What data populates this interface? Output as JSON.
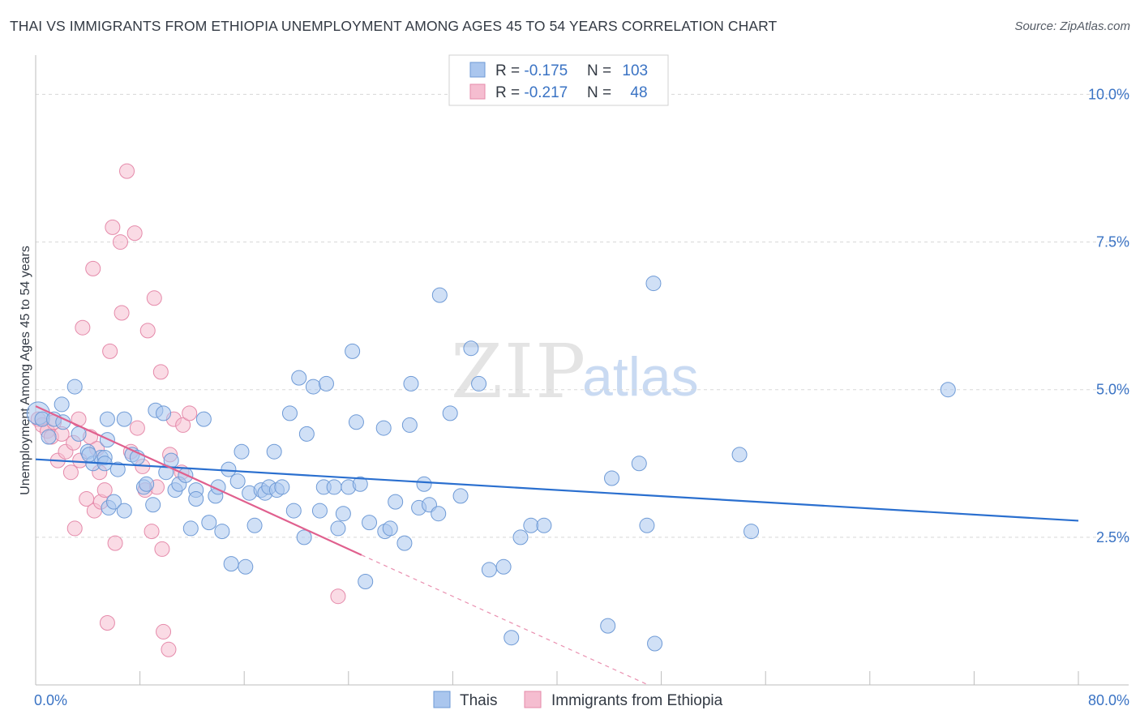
{
  "header": {
    "title": "THAI VS IMMIGRANTS FROM ETHIOPIA UNEMPLOYMENT AMONG AGES 45 TO 54 YEARS CORRELATION CHART",
    "source": "Source: ZipAtlas.com"
  },
  "watermark": {
    "zip": "ZIP",
    "atlas": "atlas"
  },
  "colors": {
    "blue_fill": "#aac6ee",
    "blue_stroke": "#6e9ad6",
    "blue_line": "#2a6fcf",
    "pink_fill": "#f5bdd0",
    "pink_stroke": "#e58aaa",
    "pink_line": "#e0608e",
    "axis_label": "#3a73c4",
    "grid": "#d8d8d8"
  },
  "chart_data": {
    "type": "scatter",
    "title": "THAI VS IMMIGRANTS FROM ETHIOPIA UNEMPLOYMENT AMONG AGES 45 TO 54 YEARS CORRELATION CHART",
    "xlabel": "",
    "ylabel": "Unemployment Among Ages 45 to 54 years",
    "xlim": [
      0,
      80
    ],
    "ylim": [
      0,
      10.5
    ],
    "x_tick_labels": [
      {
        "value": 0,
        "label": "0.0%"
      },
      {
        "value": 80,
        "label": "80.0%"
      }
    ],
    "y_tick_labels": [
      {
        "value": 2.5,
        "label": "2.5%"
      },
      {
        "value": 5.0,
        "label": "5.0%"
      },
      {
        "value": 7.5,
        "label": "7.5%"
      },
      {
        "value": 10.0,
        "label": "10.0%"
      }
    ],
    "grid": true,
    "legend_top": [
      {
        "r_label": "R = ",
        "r_value": "-0.175",
        "n_label": "N = ",
        "n_value": "103"
      },
      {
        "r_label": "R = ",
        "r_value": "-0.217",
        "n_label": "N = ",
        "n_value": "48"
      }
    ],
    "legend_bottom": [
      "Thais",
      "Immigrants from Ethiopia"
    ],
    "series": [
      {
        "name": "Thais",
        "color": "blue",
        "trend": {
          "x0": 0,
          "y0": 3.82,
          "x1": 80,
          "y1": 2.78
        },
        "points": [
          [
            0.2,
            4.6
          ],
          [
            0.5,
            4.5
          ],
          [
            1.0,
            4.2
          ],
          [
            1.4,
            4.5
          ],
          [
            2.0,
            4.75
          ],
          [
            3.0,
            5.05
          ],
          [
            3.3,
            4.25
          ],
          [
            4.0,
            3.95
          ],
          [
            4.4,
            3.75
          ],
          [
            5.0,
            3.85
          ],
          [
            5.3,
            3.85
          ],
          [
            5.5,
            4.15
          ],
          [
            5.3,
            3.75
          ],
          [
            5.6,
            3.0
          ],
          [
            5.5,
            4.5
          ],
          [
            6.0,
            3.1
          ],
          [
            6.3,
            3.65
          ],
          [
            6.8,
            2.95
          ],
          [
            6.8,
            4.5
          ],
          [
            7.4,
            3.9
          ],
          [
            7.8,
            3.85
          ],
          [
            8.3,
            3.35
          ],
          [
            8.5,
            3.4
          ],
          [
            9.0,
            3.05
          ],
          [
            9.2,
            4.65
          ],
          [
            9.8,
            4.6
          ],
          [
            10.0,
            3.6
          ],
          [
            10.4,
            3.8
          ],
          [
            10.7,
            3.3
          ],
          [
            11.0,
            3.4
          ],
          [
            11.5,
            3.55
          ],
          [
            11.9,
            2.65
          ],
          [
            12.3,
            3.3
          ],
          [
            12.3,
            3.15
          ],
          [
            12.9,
            4.5
          ],
          [
            13.3,
            2.75
          ],
          [
            13.8,
            3.2
          ],
          [
            14.0,
            3.35
          ],
          [
            14.3,
            2.6
          ],
          [
            14.8,
            3.65
          ],
          [
            15.0,
            2.05
          ],
          [
            15.5,
            3.45
          ],
          [
            15.8,
            3.95
          ],
          [
            16.1,
            2.0
          ],
          [
            16.4,
            3.25
          ],
          [
            16.8,
            2.7
          ],
          [
            17.3,
            3.3
          ],
          [
            17.6,
            3.25
          ],
          [
            17.9,
            3.35
          ],
          [
            18.3,
            3.95
          ],
          [
            18.5,
            3.3
          ],
          [
            18.9,
            3.35
          ],
          [
            19.5,
            4.6
          ],
          [
            19.8,
            2.95
          ],
          [
            20.2,
            5.2
          ],
          [
            20.6,
            2.5
          ],
          [
            20.8,
            4.25
          ],
          [
            21.3,
            5.05
          ],
          [
            21.8,
            2.95
          ],
          [
            22.1,
            3.35
          ],
          [
            22.3,
            5.1
          ],
          [
            22.9,
            3.35
          ],
          [
            23.2,
            2.65
          ],
          [
            23.6,
            2.9
          ],
          [
            24.0,
            3.35
          ],
          [
            24.3,
            5.65
          ],
          [
            24.6,
            4.45
          ],
          [
            24.9,
            3.4
          ],
          [
            25.3,
            1.75
          ],
          [
            25.6,
            2.75
          ],
          [
            26.7,
            4.35
          ],
          [
            26.8,
            2.6
          ],
          [
            27.2,
            2.65
          ],
          [
            27.6,
            3.1
          ],
          [
            28.3,
            2.4
          ],
          [
            28.7,
            4.4
          ],
          [
            28.8,
            5.1
          ],
          [
            29.4,
            3.0
          ],
          [
            29.8,
            3.4
          ],
          [
            30.2,
            3.05
          ],
          [
            30.9,
            2.9
          ],
          [
            31.0,
            6.6
          ],
          [
            31.8,
            4.6
          ],
          [
            32.6,
            3.2
          ],
          [
            33.4,
            5.7
          ],
          [
            34.0,
            5.1
          ],
          [
            34.8,
            1.95
          ],
          [
            35.9,
            2.0
          ],
          [
            36.5,
            0.8
          ],
          [
            37.2,
            2.5
          ],
          [
            38.0,
            2.7
          ],
          [
            39.0,
            2.7
          ],
          [
            43.9,
            1.0
          ],
          [
            44.2,
            3.5
          ],
          [
            46.3,
            3.75
          ],
          [
            46.9,
            2.7
          ],
          [
            47.4,
            6.8
          ],
          [
            47.5,
            0.7
          ],
          [
            54.0,
            3.9
          ],
          [
            54.9,
            2.6
          ],
          [
            70.0,
            5.0
          ],
          [
            2.1,
            4.45
          ],
          [
            4.1,
            3.9
          ]
        ]
      },
      {
        "name": "Immigrants from Ethiopia",
        "color": "pink",
        "trend": {
          "x0": 0,
          "y0": 4.72,
          "x1": 25,
          "y1": 2.2
        },
        "trend_ext": {
          "x0": 25,
          "y0": 2.2,
          "x1": 47,
          "y1": 0.0
        },
        "points": [
          [
            0.2,
            4.5
          ],
          [
            0.5,
            4.4
          ],
          [
            0.9,
            4.3
          ],
          [
            1.2,
            4.2
          ],
          [
            1.4,
            4.45
          ],
          [
            1.7,
            3.8
          ],
          [
            2.0,
            4.25
          ],
          [
            2.3,
            3.95
          ],
          [
            2.7,
            3.6
          ],
          [
            2.9,
            4.1
          ],
          [
            3.0,
            2.65
          ],
          [
            3.3,
            4.5
          ],
          [
            3.4,
            3.8
          ],
          [
            3.6,
            6.05
          ],
          [
            3.9,
            3.15
          ],
          [
            4.2,
            4.2
          ],
          [
            4.4,
            7.05
          ],
          [
            4.5,
            2.95
          ],
          [
            4.7,
            4.0
          ],
          [
            4.9,
            3.6
          ],
          [
            5.0,
            3.1
          ],
          [
            5.3,
            3.3
          ],
          [
            5.5,
            1.05
          ],
          [
            5.7,
            5.65
          ],
          [
            5.9,
            7.75
          ],
          [
            6.1,
            2.4
          ],
          [
            6.5,
            7.5
          ],
          [
            6.6,
            6.3
          ],
          [
            7.0,
            8.7
          ],
          [
            7.3,
            3.95
          ],
          [
            7.6,
            7.65
          ],
          [
            7.8,
            4.35
          ],
          [
            8.2,
            3.7
          ],
          [
            8.4,
            3.3
          ],
          [
            8.6,
            6.0
          ],
          [
            8.9,
            2.6
          ],
          [
            9.1,
            6.55
          ],
          [
            9.3,
            3.35
          ],
          [
            9.6,
            5.3
          ],
          [
            9.7,
            2.3
          ],
          [
            9.8,
            0.9
          ],
          [
            10.3,
            3.9
          ],
          [
            10.6,
            4.5
          ],
          [
            11.2,
            3.6
          ],
          [
            11.3,
            4.4
          ],
          [
            11.8,
            4.6
          ],
          [
            10.2,
            0.6
          ],
          [
            23.2,
            1.5
          ]
        ]
      }
    ]
  }
}
